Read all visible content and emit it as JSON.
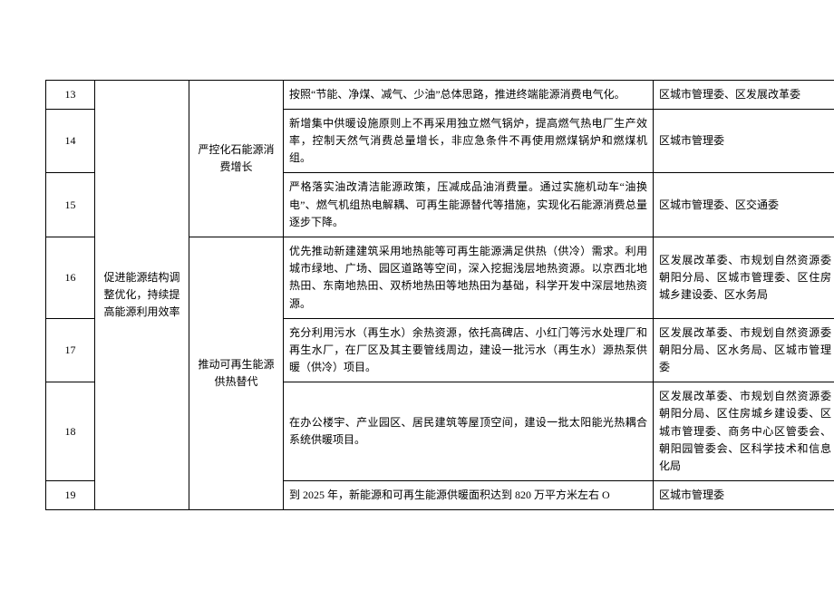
{
  "group": "促进能源结构调整优化，持续提高能源利用效率",
  "sub_a": "严控化石能源消费增长",
  "sub_b": "推动可再生能源供热替代",
  "rows": [
    {
      "idx": "13",
      "task": "按照“节能、净煤、减气、少油”总体思路，推进终端能源消费电气化。",
      "resp": "区城市管理委、区发展改革委"
    },
    {
      "idx": "14",
      "task": "新增集中供暖设施原则上不再采用独立燃气锅炉，提高燃气热电厂生产效率，控制天然气消费总量增长，非应急条件不再使用燃煤锅炉和燃煤机组。",
      "resp": "区城市管理委"
    },
    {
      "idx": "15",
      "task": "严格落实油改清洁能源政策，压减成品油消费量。通过实施机动车“油换电”、燃气机组热电解耦、可再生能源替代等措施，实现化石能源消费总量逐步下降。",
      "resp": "区城市管理委、区交通委"
    },
    {
      "idx": "16",
      "task": "优先推动新建建筑采用地热能等可再生能源满足供热（供冷）需求。利用城市绿地、广场、园区道路等空间，深入挖掘浅层地热资源。以京西北地热田、东南地热田、双桥地热田等地热田为基础，科学开发中深层地热资源。",
      "resp": "区发展改革委、市规划自然资源委朝阳分局、区城市管理委、区住房城乡建设委、区水务局"
    },
    {
      "idx": "17",
      "task": "充分利用污水（再生水）余热资源，依托高碑店、小红门等污水处理厂和再生水厂，在厂区及其主要管线周边，建设一批污水（再生水）源热泵供暖（供冷）项目。",
      "resp": "区发展改革委、市规划自然资源委朝阳分局、区水务局、区城市管理委"
    },
    {
      "idx": "18",
      "task": "在办公楼宇、产业园区、居民建筑等屋顶空间，建设一批太阳能光热耦合系统供暖项目。",
      "resp": "区发展改革委、市规划自然资源委朝阳分局、区住房城乡建设委、区城市管理委、商务中心区管委会、朝阳园管委会、区科学技术和信息化局"
    },
    {
      "idx": "19",
      "task": "到 2025 年，新能源和可再生能源供暖面积达到 820 万平方米左右 O",
      "resp": "区城市管理委"
    }
  ]
}
